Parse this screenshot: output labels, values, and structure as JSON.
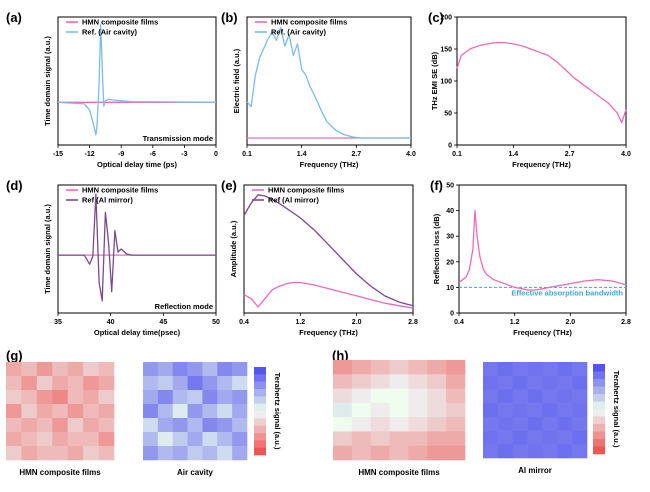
{
  "colors": {
    "pink": "#ee6ab8",
    "light_blue": "#7bbde8",
    "purple": "#7b4a8e",
    "cyan": "#38a9d6",
    "heat_blue": "#5555ee",
    "heat_red": "#ee5555"
  },
  "panels": {
    "a": {
      "label": "(a)",
      "chart_data": {
        "type": "line",
        "xlabel": "Optical delay time (ps)",
        "ylabel": "Time domain signal (a.u.)",
        "xlim": [
          -15,
          0
        ],
        "xticks": [
          "-15",
          "-12",
          "-9",
          "-6",
          "-3",
          "0"
        ],
        "annotation": "Transmission mode",
        "legend": [
          "HMN composite films",
          "Ref. (Air cavity)"
        ],
        "series": [
          {
            "name": "HMN composite films",
            "x": [
              -15,
              0
            ],
            "y": [
              0,
              0
            ]
          },
          {
            "name": "Ref. (Air cavity)",
            "x": [
              -15,
              -12.5,
              -12,
              -11.6,
              -11.4,
              -11.3,
              -11.1,
              -10.95,
              -10.8,
              -10.65,
              -10.5,
              -10.2,
              -9.8,
              -9,
              -8,
              -5,
              0
            ],
            "y": [
              0,
              -0.02,
              -0.1,
              -0.3,
              -0.42,
              -0.3,
              0.25,
              1.0,
              0.45,
              -0.05,
              0.02,
              0.04,
              0.03,
              0.02,
              0.01,
              0.005,
              0
            ]
          }
        ]
      }
    },
    "b": {
      "label": "(b)",
      "chart_data": {
        "type": "line",
        "xlabel": "Frequency (THz)",
        "ylabel": "Electric field (a.u.)",
        "xlim": [
          0.1,
          4.0
        ],
        "xticks": [
          "0.1",
          "1.4",
          "2.7",
          "4.0"
        ],
        "legend": [
          "HMN composite films",
          "Ref. (Air cavity)"
        ],
        "series": [
          {
            "name": "HMN composite films",
            "x": [
              0.1,
              4.0
            ],
            "y": [
              0.01,
              0.01
            ]
          },
          {
            "name": "Ref. (Air cavity)",
            "x": [
              0.1,
              0.2,
              0.3,
              0.4,
              0.5,
              0.6,
              0.7,
              0.8,
              0.9,
              1.0,
              1.1,
              1.2,
              1.3,
              1.4,
              1.5,
              1.6,
              1.7,
              1.8,
              1.9,
              2.0,
              2.2,
              2.4,
              2.6,
              2.8,
              3.0,
              3.5,
              4.0
            ],
            "y": [
              0.32,
              0.28,
              0.55,
              0.7,
              0.78,
              0.86,
              0.92,
              0.85,
              0.96,
              0.8,
              0.9,
              0.72,
              0.82,
              0.6,
              0.55,
              0.45,
              0.38,
              0.3,
              0.22,
              0.15,
              0.08,
              0.04,
              0.02,
              0.01,
              0.01,
              0.01,
              0.01
            ]
          }
        ]
      }
    },
    "c": {
      "label": "(c)",
      "chart_data": {
        "type": "line",
        "xlabel": "Frequency (THz)",
        "ylabel": "THz EMI SE (dB)",
        "xlim": [
          0.1,
          4.0
        ],
        "ylim": [
          0,
          200
        ],
        "xticks": [
          "0.1",
          "1.4",
          "2.7",
          "4.0"
        ],
        "yticks": [
          "0",
          "50",
          "100",
          "150",
          "200"
        ],
        "series": [
          {
            "name": "",
            "x": [
              0.1,
              0.2,
              0.4,
              0.6,
              0.8,
              1.0,
              1.2,
              1.4,
              1.6,
              1.8,
              2.0,
              2.2,
              2.4,
              2.6,
              2.8,
              3.0,
              3.2,
              3.4,
              3.6,
              3.8,
              3.9,
              4.0
            ],
            "y": [
              120,
              140,
              150,
              155,
              158,
              160,
              160,
              158,
              155,
              150,
              145,
              140,
              130,
              118,
              105,
              95,
              85,
              75,
              65,
              50,
              35,
              55
            ]
          }
        ]
      }
    },
    "d": {
      "label": "(d)",
      "chart_data": {
        "type": "line",
        "xlabel": "Optical delay time(psec)",
        "ylabel": "Time domain signal (a.u.)",
        "xlim": [
          35,
          50
        ],
        "xticks": [
          "35",
          "40",
          "45",
          "50"
        ],
        "annotation": "Reflection mode",
        "legend": [
          "HMN composite films",
          "Ref (Al mirror)"
        ],
        "series": [
          {
            "name": "HMN composite films",
            "x": [
              35,
              50
            ],
            "y": [
              0,
              0
            ]
          },
          {
            "name": "Ref (Al mirror)",
            "x": [
              35,
              37.5,
              38.0,
              38.3,
              38.6,
              38.9,
              39.2,
              39.5,
              39.8,
              40.1,
              40.4,
              40.7,
              41.0,
              41.5,
              42,
              50
            ],
            "y": [
              0,
              0,
              -0.15,
              -0.02,
              1.0,
              -0.45,
              -0.75,
              0.7,
              0.2,
              -0.6,
              0.4,
              0.05,
              0.1,
              0.02,
              0,
              0
            ]
          }
        ]
      }
    },
    "e": {
      "label": "(e)",
      "chart_data": {
        "type": "line",
        "xlabel": "Frequency (THz)",
        "ylabel": "Amplitude (a.u.)",
        "xlim": [
          0.4,
          2.8
        ],
        "xticks": [
          "0.4",
          "1.2",
          "2.0",
          "2.8"
        ],
        "legend": [
          "HMN composite films",
          "Ref (Al mirror)"
        ],
        "series": [
          {
            "name": "HMN composite films",
            "x": [
              0.4,
              0.5,
              0.6,
              0.7,
              0.8,
              0.9,
              1.0,
              1.1,
              1.2,
              1.4,
              1.6,
              1.8,
              2.0,
              2.2,
              2.4,
              2.6,
              2.8
            ],
            "y": [
              0.15,
              0.12,
              0.05,
              0.12,
              0.19,
              0.22,
              0.24,
              0.25,
              0.25,
              0.23,
              0.2,
              0.17,
              0.14,
              0.11,
              0.08,
              0.06,
              0.04
            ]
          },
          {
            "name": "Ref (Al mirror)",
            "x": [
              0.4,
              0.5,
              0.6,
              0.7,
              0.8,
              0.9,
              1.0,
              1.2,
              1.4,
              1.6,
              1.8,
              2.0,
              2.2,
              2.4,
              2.6,
              2.8
            ],
            "y": [
              0.8,
              0.9,
              0.97,
              0.96,
              0.93,
              0.9,
              0.86,
              0.78,
              0.68,
              0.56,
              0.44,
              0.32,
              0.22,
              0.14,
              0.09,
              0.06
            ]
          }
        ]
      }
    },
    "f": {
      "label": "(f)",
      "chart_data": {
        "type": "line",
        "xlabel": "Frequency (THz)",
        "ylabel": "Reflection loss (dB)",
        "xlim": [
          0.4,
          2.8
        ],
        "ylim": [
          0,
          50
        ],
        "xticks": [
          "0.4",
          "1.2",
          "2.0",
          "2.8"
        ],
        "yticks": [
          "0",
          "10",
          "20",
          "30",
          "40",
          "50"
        ],
        "annotation": "Effective absorption bandwidth",
        "threshold": 10,
        "series": [
          {
            "name": "",
            "x": [
              0.4,
              0.5,
              0.55,
              0.6,
              0.63,
              0.66,
              0.7,
              0.75,
              0.8,
              0.9,
              1.0,
              1.1,
              1.2,
              1.3,
              1.4,
              1.5,
              1.6,
              1.8,
              2.0,
              2.2,
              2.4,
              2.6,
              2.8
            ],
            "y": [
              12,
              14,
              17,
              25,
              40,
              30,
              22,
              17,
              15,
              13,
              12,
              11,
              10,
              9.5,
              9,
              9,
              9.5,
              10.5,
              11.5,
              12.5,
              13,
              12.5,
              11
            ]
          }
        ]
      }
    }
  },
  "heatmaps": {
    "g": {
      "label": "(g)",
      "colorbar_label": "Terahertz signal (a.u.)",
      "maps": [
        {
          "title": "HMN composite films",
          "values": [
            [
              0.25,
              0.3,
              0.2,
              0.3,
              0.25,
              0.35,
              0.3
            ],
            [
              0.3,
              0.2,
              0.35,
              0.25,
              0.3,
              0.2,
              0.25
            ],
            [
              0.35,
              0.3,
              0.2,
              0.15,
              0.3,
              0.25,
              0.35
            ],
            [
              0.2,
              0.35,
              0.25,
              0.3,
              0.2,
              0.3,
              0.25
            ],
            [
              0.3,
              0.25,
              0.3,
              0.2,
              0.35,
              0.25,
              0.3
            ],
            [
              0.25,
              0.3,
              0.35,
              0.25,
              0.3,
              0.3,
              0.2
            ],
            [
              0.35,
              0.25,
              0.3,
              0.3,
              0.25,
              0.35,
              0.3
            ]
          ]
        },
        {
          "title": "Air cavity",
          "values": [
            [
              0.8,
              0.75,
              0.85,
              0.8,
              0.7,
              0.85,
              0.8
            ],
            [
              0.7,
              0.65,
              0.75,
              0.9,
              0.8,
              0.7,
              0.6
            ],
            [
              0.75,
              0.85,
              0.7,
              0.65,
              0.85,
              0.75,
              0.8
            ],
            [
              0.85,
              0.7,
              0.55,
              0.8,
              0.7,
              0.6,
              0.75
            ],
            [
              0.6,
              0.75,
              0.8,
              0.7,
              0.85,
              0.8,
              0.7
            ],
            [
              0.7,
              0.55,
              0.65,
              0.75,
              0.6,
              0.7,
              0.8
            ],
            [
              0.8,
              0.7,
              0.75,
              0.65,
              0.7,
              0.6,
              0.75
            ]
          ]
        }
      ]
    },
    "h": {
      "label": "(h)",
      "colorbar_label": "Terahertz signal (a.u.)",
      "maps": [
        {
          "title": "HMN composite films",
          "values": [
            [
              0.2,
              0.25,
              0.3,
              0.35,
              0.3,
              0.25,
              0.2
            ],
            [
              0.3,
              0.35,
              0.4,
              0.45,
              0.4,
              0.35,
              0.25
            ],
            [
              0.4,
              0.45,
              0.5,
              0.5,
              0.45,
              0.4,
              0.3
            ],
            [
              0.55,
              0.5,
              0.45,
              0.5,
              0.45,
              0.4,
              0.35
            ],
            [
              0.5,
              0.45,
              0.4,
              0.45,
              0.4,
              0.35,
              0.3
            ],
            [
              0.35,
              0.3,
              0.35,
              0.3,
              0.3,
              0.25,
              0.25
            ],
            [
              0.25,
              0.3,
              0.25,
              0.3,
              0.25,
              0.2,
              0.2
            ]
          ]
        },
        {
          "title": "Al mirror",
          "values": [
            [
              0.9,
              0.92,
              0.9,
              0.91,
              0.9,
              0.92,
              0.9
            ],
            [
              0.91,
              0.9,
              0.92,
              0.9,
              0.91,
              0.9,
              0.92
            ],
            [
              0.9,
              0.92,
              0.9,
              0.92,
              0.9,
              0.91,
              0.9
            ],
            [
              0.92,
              0.9,
              0.91,
              0.9,
              0.92,
              0.9,
              0.91
            ],
            [
              0.9,
              0.91,
              0.9,
              0.92,
              0.9,
              0.92,
              0.9
            ],
            [
              0.91,
              0.9,
              0.92,
              0.9,
              0.91,
              0.9,
              0.92
            ],
            [
              0.9,
              0.92,
              0.9,
              0.91,
              0.9,
              0.92,
              0.9
            ]
          ]
        }
      ]
    }
  }
}
